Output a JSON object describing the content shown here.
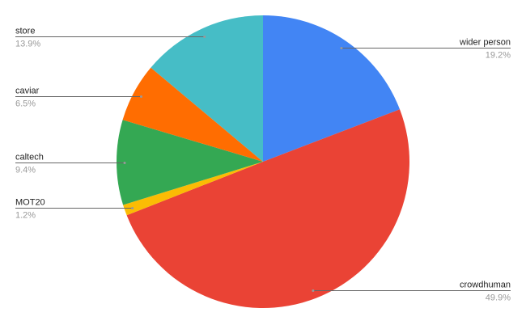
{
  "chart_data": {
    "type": "pie",
    "title": "",
    "start_angle": "top, clockwise",
    "slices": [
      {
        "label": "wider person",
        "value": 19.2,
        "pct_label": "19.2%",
        "color": "#4285f4",
        "side": "right"
      },
      {
        "label": "crowdhuman",
        "value": 49.9,
        "pct_label": "49.9%",
        "color": "#ea4335",
        "side": "right"
      },
      {
        "label": "MOT20",
        "value": 1.2,
        "pct_label": "1.2%",
        "color": "#fbbc04",
        "side": "left"
      },
      {
        "label": "caltech",
        "value": 9.4,
        "pct_label": "9.4%",
        "color": "#34a853",
        "side": "left"
      },
      {
        "label": "caviar",
        "value": 6.5,
        "pct_label": "6.5%",
        "color": "#ff6d01",
        "side": "left"
      },
      {
        "label": "store",
        "value": 13.9,
        "pct_label": "13.9%",
        "color": "#46bdc6",
        "side": "left"
      }
    ],
    "legend": "labeled leader lines"
  }
}
